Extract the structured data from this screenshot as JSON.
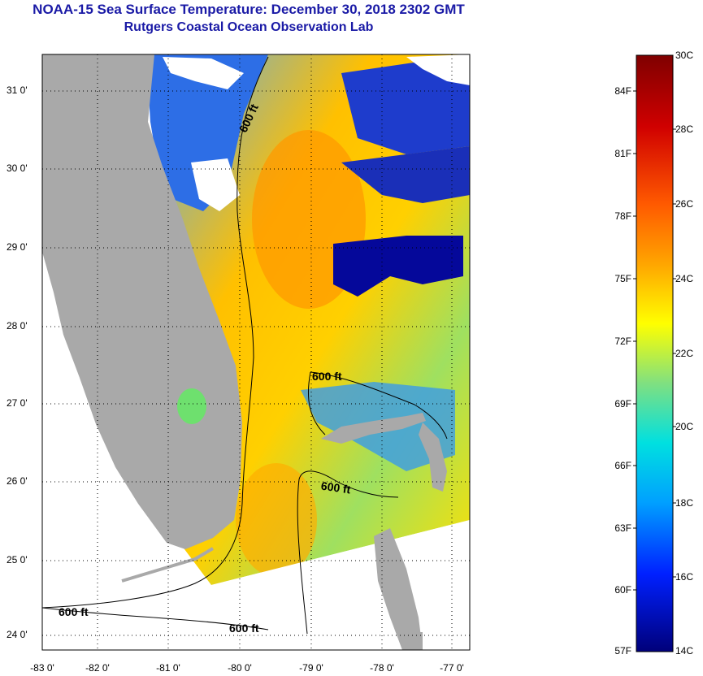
{
  "header": {
    "title": "NOAA-15 Sea Surface Temperature:  December 30, 2018 2302 GMT",
    "subtitle": "Rutgers Coastal Ocean Observation Lab"
  },
  "map": {
    "lat_labels": [
      "31 0'",
      "30 0'",
      "29 0'",
      "28 0'",
      "27 0'",
      "26 0'",
      "25 0'",
      "24 0'"
    ],
    "lon_labels": [
      "-83 0'",
      "-82 0'",
      "-81 0'",
      "-80 0'",
      "-79 0'",
      "-78 0'",
      "-77 0'"
    ],
    "contour_labels": [
      "600 ft",
      "600 ft",
      "600 ft",
      "600 ft",
      "600 ft"
    ]
  },
  "colorbar": {
    "fahrenheit": [
      "84F",
      "81F",
      "78F",
      "75F",
      "72F",
      "69F",
      "66F",
      "63F",
      "60F",
      "57F"
    ],
    "celsius": [
      "30C",
      "28C",
      "26C",
      "24C",
      "22C",
      "20C",
      "18C",
      "16C",
      "14C"
    ],
    "gradient_colors": [
      "#7f0000",
      "#c40000",
      "#ff2a00",
      "#ff7f00",
      "#ffbf00",
      "#ffff00",
      "#9fe060",
      "#00e6e6",
      "#00aaff",
      "#0055ff",
      "#0000ff",
      "#00008a"
    ]
  },
  "colors": {
    "land": "#a9a9a9",
    "cloud": "#ffffff",
    "title": "#1a1aa6"
  }
}
